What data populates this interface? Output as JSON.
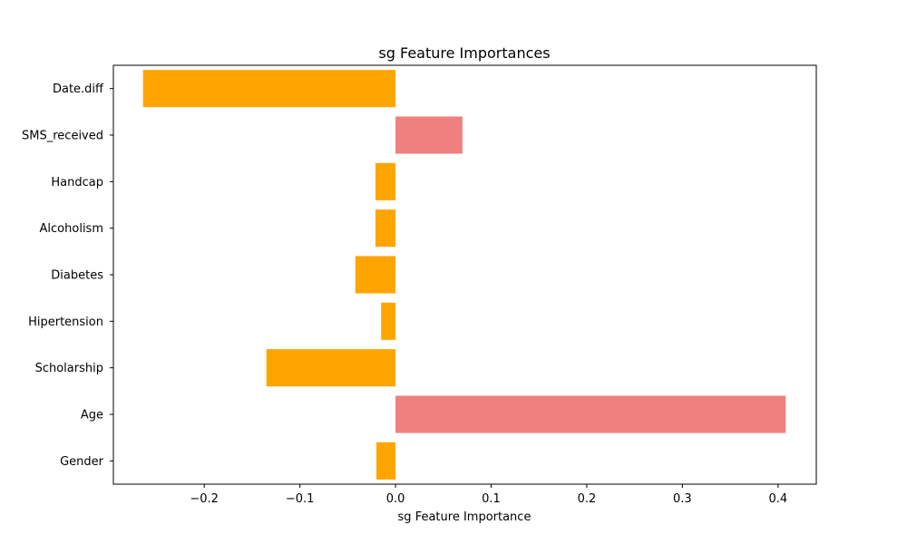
{
  "chart_data": {
    "type": "bar",
    "orientation": "horizontal",
    "title": "sg Feature Importances",
    "xlabel": "sg Feature Importance",
    "ylabel": "",
    "categories": [
      "Date.diff",
      "SMS_received",
      "Handcap",
      "Alcoholism",
      "Diabetes",
      "Hipertension",
      "Scholarship",
      "Age",
      "Gender"
    ],
    "values": [
      -0.264,
      0.07,
      -0.021,
      -0.021,
      -0.042,
      -0.015,
      -0.135,
      0.408,
      -0.02
    ],
    "xlim": [
      -0.295,
      0.44
    ],
    "xticks": [
      -0.2,
      -0.1,
      0.0,
      0.1,
      0.2,
      0.3,
      0.4
    ],
    "xtick_labels": [
      "−0.2",
      "−0.1",
      "0.0",
      "0.1",
      "0.2",
      "0.3",
      "0.4"
    ],
    "colors": {
      "negative": "#ffa500",
      "positive": "#f08080"
    },
    "grid": false,
    "legend": "none"
  }
}
